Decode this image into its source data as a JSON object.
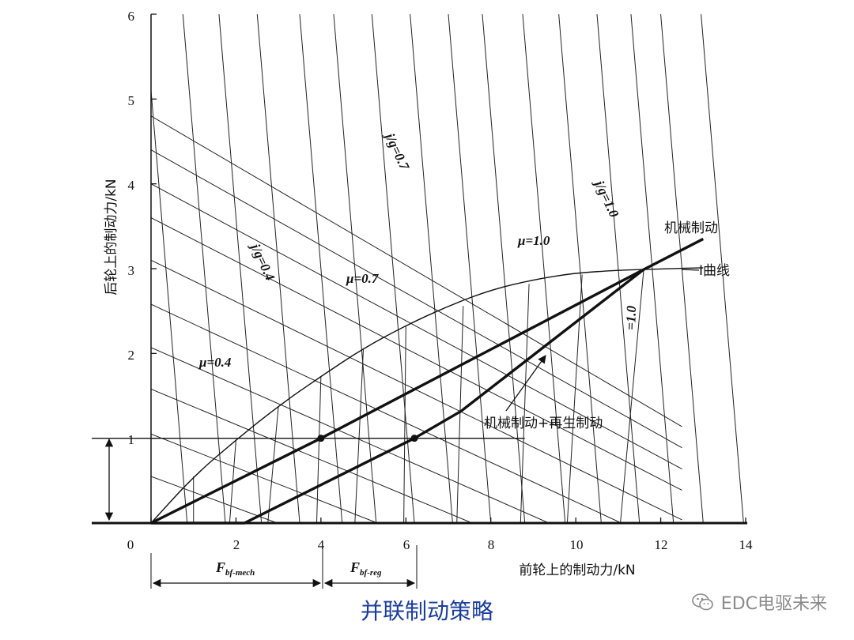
{
  "chart_data": {
    "type": "line",
    "xlabel": "前轮上的制动力/kN",
    "ylabel": "后轮上的制动力/kN",
    "xlim": [
      0,
      14
    ],
    "ylim": [
      0,
      6
    ],
    "x_ticks": [
      "0",
      "2",
      "4",
      "6",
      "8",
      "10",
      "12",
      "14"
    ],
    "y_ticks": [
      "1",
      "2",
      "3",
      "4",
      "5",
      "6"
    ],
    "caption": "并联制动策略",
    "series": [
      {
        "name": "I曲线",
        "points": [
          [
            0,
            0
          ],
          [
            1,
            0.55
          ],
          [
            2,
            0.98
          ],
          [
            3,
            1.38
          ],
          [
            4,
            1.73
          ],
          [
            5,
            2.06
          ],
          [
            6,
            2.33
          ],
          [
            7,
            2.56
          ],
          [
            8,
            2.75
          ],
          [
            9,
            2.87
          ],
          [
            10,
            2.95
          ],
          [
            11,
            2.98
          ],
          [
            11.6,
            2.99
          ],
          [
            12.2,
            3.0
          ],
          [
            13,
            3.01
          ]
        ]
      },
      {
        "name": "机械制动",
        "points": [
          [
            0,
            0
          ],
          [
            4,
            1.0
          ],
          [
            11.6,
            2.99
          ],
          [
            13,
            3.35
          ]
        ]
      },
      {
        "name": "机械制动+再生制动",
        "points": [
          [
            0,
            0
          ],
          [
            2.2,
            0
          ],
          [
            6.2,
            1.0
          ],
          [
            7.3,
            1.32
          ],
          [
            11.6,
            2.99
          ]
        ]
      }
    ],
    "markers": [
      [
        4,
        1.0
      ],
      [
        6.2,
        1.0
      ]
    ],
    "deceleration_lines": [
      {
        "x_intercept": 0.85
      },
      {
        "x_intercept": 1.75
      },
      {
        "x_intercept": 2.6
      },
      {
        "x_intercept": 3.5
      },
      {
        "x_intercept": 4.5
      },
      {
        "x_intercept": 5.3
      },
      {
        "x_intercept": 6.2
      },
      {
        "x_intercept": 7.1
      },
      {
        "x_intercept": 8.0
      },
      {
        "x_intercept": 8.8
      },
      {
        "x_intercept": 9.75
      },
      {
        "x_intercept": 10.6
      },
      {
        "x_intercept": 11.5
      },
      {
        "x_intercept": 12.3
      },
      {
        "x_intercept": 13.0
      },
      {
        "x_intercept": 13.95
      }
    ],
    "mu_lines": [
      {
        "y_intercept": 0.55
      },
      {
        "y_intercept": 1.05
      },
      {
        "y_intercept": 1.58
      },
      {
        "y_intercept": 2.07
      },
      {
        "y_intercept": 2.58
      },
      {
        "y_intercept": 3.1
      },
      {
        "y_intercept": 3.6
      },
      {
        "y_intercept": 4.0
      },
      {
        "y_intercept": 4.4
      },
      {
        "y_intercept": 4.8
      }
    ],
    "front_rear_lines": [
      {
        "points": [
          [
            1.0,
            0
          ],
          [
            1.0,
            0.55
          ]
        ]
      },
      {
        "points": [
          [
            1.85,
            0
          ],
          [
            2.0,
            0.98
          ]
        ]
      },
      {
        "points": [
          [
            2.75,
            0
          ],
          [
            3.0,
            1.38
          ]
        ]
      },
      {
        "points": [
          [
            3.9,
            0
          ],
          [
            4.0,
            1.73
          ]
        ]
      },
      {
        "points": [
          [
            4.8,
            0
          ],
          [
            5.0,
            2.06
          ]
        ]
      },
      {
        "points": [
          [
            5.95,
            0
          ],
          [
            6.0,
            2.33
          ]
        ]
      },
      {
        "points": [
          [
            7.2,
            0
          ],
          [
            7.35,
            2.56
          ]
        ]
      },
      {
        "points": [
          [
            8.7,
            0
          ],
          [
            8.9,
            2.82
          ]
        ]
      },
      {
        "points": [
          [
            9.8,
            0
          ],
          [
            10.15,
            2.93
          ]
        ]
      },
      {
        "points": [
          [
            11.05,
            0
          ],
          [
            11.6,
            2.99
          ]
        ]
      }
    ],
    "annotations": {
      "jg04": "j/g=0.4",
      "jg07": "j/g=0.7",
      "jg10": "j/g=1.0",
      "mu04": "μ=0.4",
      "mu07": "μ=0.7",
      "mu10": "μ=1.0",
      "eq10": "=1.0",
      "mech": "机械制动",
      "icurve": "I曲线",
      "regen": "机械制动+再生制动"
    },
    "dimension_labels": {
      "mech_main": "F",
      "mech_sub": "bf-mech",
      "reg_main": "F",
      "reg_sub": "bf-reg"
    }
  },
  "watermark": "EDC电驱未来"
}
